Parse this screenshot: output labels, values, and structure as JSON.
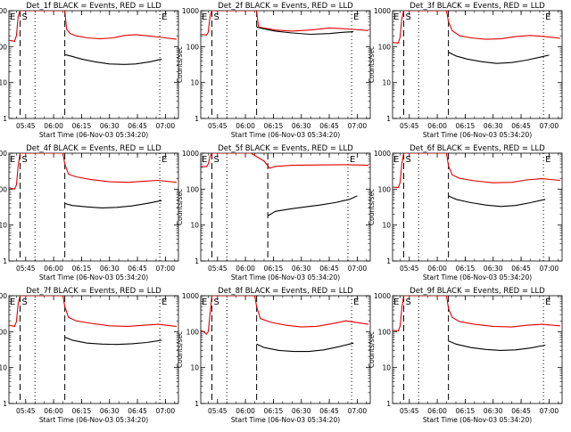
{
  "figure": {
    "x_ticks": [
      "05:45",
      "06:00",
      "06:15",
      "06:30",
      "06:45",
      "07:00"
    ],
    "y_ticks": [
      "1",
      "10",
      "100",
      "1000"
    ],
    "ylabel": "Counts/sec",
    "xlabel": "Start Time (06-Nov-03 05:34:20)",
    "marker_E": "E",
    "marker_S": "S",
    "colors": {
      "events": "#000000",
      "lld": "#e00000",
      "axes": "#000000"
    }
  },
  "chart_data": [
    {
      "type": "line",
      "panel": "1",
      "title": "Det_1f BLACK = Events, RED = LLD",
      "xlabel": "Start Time (06-Nov-03 05:34:20)",
      "ylabel": "Counts/sec",
      "xlim": [
        "05:36",
        "07:07"
      ],
      "ylim": [
        1,
        1000
      ],
      "yscale": "log",
      "dashed_vlines": [
        "05:42",
        "06:06"
      ],
      "dotted_vlines": [
        "05:50",
        "06:57"
      ],
      "event_markers": [
        {
          "label": "E",
          "time": "05:36"
        },
        {
          "label": "S",
          "time": "05:42"
        },
        {
          "label": "E",
          "time": "06:57"
        }
      ],
      "series": [
        {
          "name": "RED = LLD",
          "color": "#e00000",
          "time": [
            "05:36",
            "05:39",
            "05:40",
            "05:41",
            "05:42",
            "05:43",
            "05:44",
            "06:05",
            "06:06",
            "06:07",
            "06:09",
            "06:12",
            "06:18",
            "06:25",
            "06:32",
            "06:38",
            "06:44",
            "06:52",
            "06:58",
            "07:06"
          ],
          "values": [
            150,
            140,
            200,
            700,
            1000,
            1000,
            1000,
            1000,
            1000,
            300,
            230,
            200,
            175,
            165,
            175,
            205,
            215,
            195,
            180,
            160
          ]
        },
        {
          "name": "BLACK = Events",
          "color": "#000000",
          "time": [
            "06:06",
            "06:09",
            "06:15",
            "06:22",
            "06:30",
            "06:38",
            "06:44",
            "06:52",
            "06:58"
          ],
          "values": [
            60,
            55,
            45,
            38,
            33,
            32,
            33,
            38,
            45
          ]
        }
      ]
    },
    {
      "type": "line",
      "panel": "2",
      "title": "Det_2f BLACK = Events, RED = LLD",
      "xlabel": "Start Time (06-Nov-03 05:34:20)",
      "ylabel": "Counts/sec",
      "xlim": [
        "05:36",
        "07:07"
      ],
      "ylim": [
        1,
        1000
      ],
      "yscale": "log",
      "dashed_vlines": [
        "05:42",
        "06:06"
      ],
      "dotted_vlines": [
        "05:50",
        "06:57"
      ],
      "event_markers": [
        {
          "label": "E",
          "time": "05:36"
        },
        {
          "label": "S",
          "time": "05:42"
        },
        {
          "label": "E",
          "time": "06:57"
        }
      ],
      "series": [
        {
          "name": "RED = LLD",
          "color": "#e00000",
          "time": [
            "05:36",
            "05:39",
            "05:40",
            "05:41",
            "05:42",
            "05:43",
            "06:05",
            "06:06",
            "06:07",
            "06:10",
            "06:16",
            "06:25",
            "06:35",
            "06:45",
            "06:55",
            "07:06"
          ],
          "values": [
            220,
            210,
            250,
            700,
            1000,
            1000,
            1000,
            1000,
            350,
            330,
            290,
            270,
            290,
            330,
            310,
            280
          ]
        },
        {
          "name": "BLACK = Events",
          "color": "#000000",
          "time": [
            "06:06",
            "06:10",
            "06:16",
            "06:25",
            "06:35",
            "06:45",
            "06:52",
            "06:58"
          ],
          "values": [
            350,
            310,
            270,
            240,
            220,
            230,
            250,
            260
          ]
        }
      ]
    },
    {
      "type": "line",
      "panel": "3",
      "title": "Det_3f BLACK = Events, RED = LLD",
      "xlabel": "Start Time (06-Nov-03 05:34:20)",
      "ylabel": "Counts/sec",
      "xlim": [
        "05:36",
        "07:07"
      ],
      "ylim": [
        1,
        1000
      ],
      "yscale": "log",
      "dashed_vlines": [
        "05:42",
        "06:06"
      ],
      "dotted_vlines": [
        "05:50",
        "06:57"
      ],
      "event_markers": [
        {
          "label": "E",
          "time": "05:36"
        },
        {
          "label": "S",
          "time": "05:42"
        },
        {
          "label": "E",
          "time": "06:57"
        }
      ],
      "series": [
        {
          "name": "RED = LLD",
          "color": "#e00000",
          "time": [
            "05:36",
            "05:39",
            "05:40",
            "05:41",
            "05:42",
            "05:43",
            "06:05",
            "06:06",
            "06:08",
            "06:12",
            "06:18",
            "06:26",
            "06:34",
            "06:42",
            "06:50",
            "06:58",
            "07:06"
          ],
          "values": [
            130,
            125,
            180,
            600,
            1000,
            1000,
            1000,
            500,
            280,
            200,
            175,
            160,
            165,
            190,
            205,
            190,
            170
          ]
        },
        {
          "name": "BLACK = Events",
          "color": "#000000",
          "time": [
            "06:06",
            "06:10",
            "06:16",
            "06:24",
            "06:32",
            "06:40",
            "06:48",
            "06:56",
            "07:00"
          ],
          "values": [
            70,
            55,
            45,
            38,
            34,
            36,
            42,
            52,
            58
          ]
        }
      ]
    },
    {
      "type": "line",
      "panel": "4",
      "title": "Det_4f BLACK = Events, RED = LLD",
      "xlabel": "Start Time (06-Nov-03 05:34:20)",
      "ylabel": "Counts/sec",
      "xlim": [
        "05:36",
        "07:07"
      ],
      "ylim": [
        1,
        1000
      ],
      "yscale": "log",
      "dashed_vlines": [
        "05:42",
        "06:06"
      ],
      "dotted_vlines": [
        "05:50",
        "06:57"
      ],
      "event_markers": [
        {
          "label": "E",
          "time": "05:36"
        },
        {
          "label": "S",
          "time": "05:42"
        },
        {
          "label": "E",
          "time": "06:57"
        }
      ],
      "series": [
        {
          "name": "RED = LLD",
          "color": "#e00000",
          "time": [
            "05:36",
            "05:39",
            "05:40",
            "05:41",
            "05:42",
            "05:43",
            "06:05",
            "06:06",
            "06:08",
            "06:12",
            "06:20",
            "06:30",
            "06:40",
            "06:48",
            "06:56",
            "07:06"
          ],
          "values": [
            110,
            100,
            130,
            450,
            1000,
            1000,
            1000,
            500,
            260,
            220,
            185,
            160,
            155,
            165,
            175,
            155
          ]
        },
        {
          "name": "BLACK = Events",
          "color": "#000000",
          "time": [
            "06:06",
            "06:10",
            "06:18",
            "06:26",
            "06:34",
            "06:42",
            "06:50",
            "06:58"
          ],
          "values": [
            40,
            35,
            32,
            30,
            31,
            34,
            40,
            48
          ]
        }
      ]
    },
    {
      "type": "line",
      "panel": "5",
      "title": "Det_5f BLACK = Events, RED = LLD",
      "xlabel": "Start Time (06-Nov-03 05:34:20)",
      "ylabel": "Counts/sec",
      "xlim": [
        "05:36",
        "07:07"
      ],
      "ylim": [
        1,
        1000
      ],
      "yscale": "log",
      "dashed_vlines": [
        "05:42",
        "06:12"
      ],
      "dotted_vlines": [
        "05:50",
        "06:55"
      ],
      "event_markers": [
        {
          "label": "E",
          "time": "05:36"
        },
        {
          "label": "S",
          "time": "05:42"
        },
        {
          "label": "E",
          "time": "06:55"
        }
      ],
      "series": [
        {
          "name": "RED = LLD",
          "color": "#e00000",
          "time": [
            "05:36",
            "05:39",
            "05:40",
            "05:41",
            "05:42",
            "05:43",
            "06:03",
            "06:10",
            "06:13",
            "06:16",
            "06:25",
            "06:40",
            "06:55",
            "07:06"
          ],
          "values": [
            430,
            420,
            500,
            800,
            1000,
            1000,
            1000,
            600,
            380,
            430,
            460,
            470,
            480,
            460
          ]
        },
        {
          "name": "BLACK = Events",
          "color": "#000000",
          "time": [
            "06:12",
            "06:16",
            "06:24",
            "06:32",
            "06:40",
            "06:48",
            "06:56",
            "07:00"
          ],
          "values": [
            18,
            24,
            28,
            32,
            36,
            42,
            52,
            65
          ]
        }
      ]
    },
    {
      "type": "line",
      "panel": "6",
      "title": "Det_6f BLACK = Events, RED = LLD",
      "xlabel": "Start Time (06-Nov-03 05:34:20)",
      "ylabel": "Counts/sec",
      "xlim": [
        "05:36",
        "07:07"
      ],
      "ylim": [
        1,
        1000
      ],
      "yscale": "log",
      "dashed_vlines": [
        "05:42",
        "06:06"
      ],
      "dotted_vlines": [
        "05:50",
        "06:57"
      ],
      "event_markers": [
        {
          "label": "E",
          "time": "05:36"
        },
        {
          "label": "S",
          "time": "05:42"
        },
        {
          "label": "E",
          "time": "06:57"
        }
      ],
      "series": [
        {
          "name": "RED = LLD",
          "color": "#e00000",
          "time": [
            "05:36",
            "05:39",
            "05:40",
            "05:41",
            "05:42",
            "05:43",
            "06:05",
            "06:06",
            "06:08",
            "06:12",
            "06:20",
            "06:30",
            "06:40",
            "06:48",
            "06:56",
            "07:06"
          ],
          "values": [
            115,
            110,
            150,
            500,
            1000,
            1000,
            1000,
            450,
            250,
            200,
            170,
            150,
            155,
            180,
            195,
            175
          ]
        },
        {
          "name": "BLACK = Events",
          "color": "#000000",
          "time": [
            "06:06",
            "06:10",
            "06:18",
            "06:26",
            "06:34",
            "06:42",
            "06:50",
            "06:58"
          ],
          "values": [
            65,
            52,
            42,
            36,
            33,
            35,
            42,
            52
          ]
        }
      ]
    },
    {
      "type": "line",
      "panel": "7",
      "title": "Det_7f BLACK = Events, RED = LLD",
      "xlabel": "Start Time (06-Nov-03 05:34:20)",
      "ylabel": "Counts/sec",
      "xlim": [
        "05:36",
        "07:07"
      ],
      "ylim": [
        1,
        1000
      ],
      "yscale": "log",
      "dashed_vlines": [
        "05:42",
        "06:06"
      ],
      "dotted_vlines": [
        "05:50",
        "06:57"
      ],
      "event_markers": [
        {
          "label": "E",
          "time": "05:36"
        },
        {
          "label": "S",
          "time": "05:42"
        },
        {
          "label": "E",
          "time": "06:57"
        }
      ],
      "series": [
        {
          "name": "RED = LLD",
          "color": "#e00000",
          "time": [
            "05:36",
            "05:39",
            "05:40",
            "05:41",
            "05:42",
            "05:43",
            "06:05",
            "06:06",
            "06:08",
            "06:12",
            "06:20",
            "06:30",
            "06:40",
            "06:48",
            "06:56",
            "07:06"
          ],
          "values": [
            150,
            140,
            190,
            600,
            1000,
            1000,
            1000,
            500,
            250,
            200,
            170,
            145,
            140,
            150,
            160,
            140
          ]
        },
        {
          "name": "BLACK = Events",
          "color": "#000000",
          "time": [
            "06:06",
            "06:10",
            "06:18",
            "06:26",
            "06:34",
            "06:42",
            "06:50",
            "06:58"
          ],
          "values": [
            70,
            58,
            48,
            45,
            44,
            46,
            50,
            58
          ]
        }
      ]
    },
    {
      "type": "line",
      "panel": "8",
      "title": "Det_8f BLACK = Events, RED = LLD",
      "xlabel": "Start Time (06-Nov-03 05:34:20)",
      "ylabel": "Counts/sec",
      "xlim": [
        "05:36",
        "07:07"
      ],
      "ylim": [
        1,
        1000
      ],
      "yscale": "log",
      "dashed_vlines": [
        "05:42",
        "06:06"
      ],
      "dotted_vlines": [
        "05:50",
        "06:57"
      ],
      "event_markers": [
        {
          "label": "E",
          "time": "05:36"
        },
        {
          "label": "S",
          "time": "05:42"
        },
        {
          "label": "E",
          "time": "06:57"
        }
      ],
      "series": [
        {
          "name": "RED = LLD",
          "color": "#e00000",
          "time": [
            "05:36",
            "05:38",
            "05:39",
            "05:40",
            "05:41",
            "05:42",
            "05:43",
            "06:05",
            "06:06",
            "06:08",
            "06:14",
            "06:22",
            "06:30",
            "06:38",
            "06:46",
            "06:54",
            "07:06"
          ],
          "values": [
            110,
            95,
            85,
            100,
            300,
            1000,
            1000,
            1000,
            500,
            230,
            180,
            150,
            135,
            140,
            165,
            200,
            160
          ]
        },
        {
          "name": "BLACK = Events",
          "color": "#000000",
          "time": [
            "06:06",
            "06:10",
            "06:18",
            "06:26",
            "06:34",
            "06:42",
            "06:50",
            "06:58"
          ],
          "values": [
            45,
            36,
            30,
            28,
            28,
            31,
            38,
            48
          ]
        }
      ]
    },
    {
      "type": "line",
      "panel": "9",
      "title": "Det_9f BLACK = Events, RED = LLD",
      "xlabel": "Start Time (06-Nov-03 05:34:20)",
      "ylabel": "Counts/sec",
      "xlim": [
        "05:36",
        "07:07"
      ],
      "ylim": [
        1,
        1000
      ],
      "yscale": "log",
      "dashed_vlines": [
        "05:42",
        "06:06"
      ],
      "dotted_vlines": [
        "05:50",
        "06:57"
      ],
      "event_markers": [
        {
          "label": "E",
          "time": "05:36"
        },
        {
          "label": "S",
          "time": "05:42"
        },
        {
          "label": "E",
          "time": "06:57"
        }
      ],
      "series": [
        {
          "name": "RED = LLD",
          "color": "#e00000",
          "time": [
            "05:36",
            "05:39",
            "05:40",
            "05:41",
            "05:42",
            "05:43",
            "06:05",
            "06:06",
            "06:08",
            "06:12",
            "06:20",
            "06:30",
            "06:40",
            "06:48",
            "06:56",
            "07:06"
          ],
          "values": [
            110,
            105,
            140,
            450,
            1000,
            1000,
            1000,
            450,
            250,
            190,
            160,
            140,
            135,
            150,
            160,
            145
          ]
        },
        {
          "name": "BLACK = Events",
          "color": "#000000",
          "time": [
            "06:06",
            "06:10",
            "06:18",
            "06:26",
            "06:34",
            "06:42",
            "06:50",
            "06:58"
          ],
          "values": [
            55,
            45,
            36,
            32,
            30,
            31,
            35,
            42
          ]
        }
      ]
    }
  ]
}
